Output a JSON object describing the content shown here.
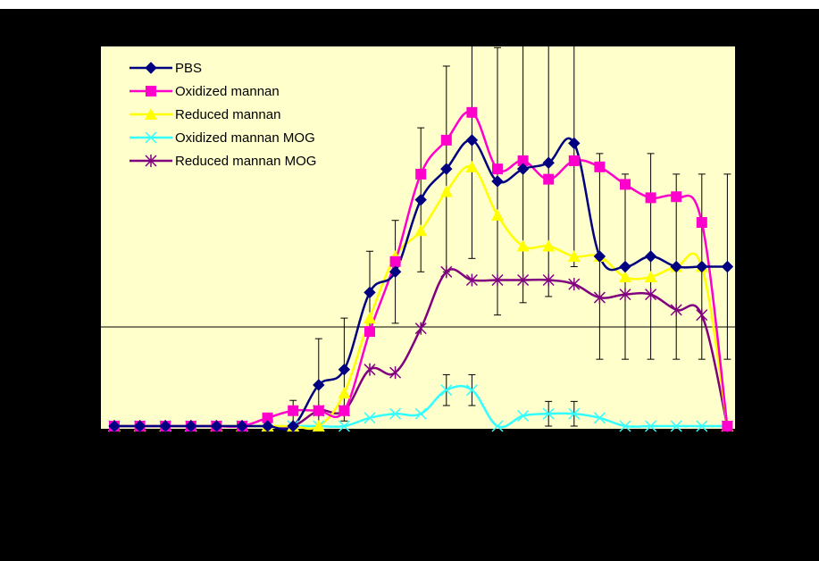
{
  "chart_data": {
    "type": "line",
    "title": "",
    "xlabel": "",
    "ylabel": "",
    "ylim": [
      0,
      3.5
    ],
    "x": [
      1,
      2,
      3,
      4,
      5,
      6,
      7,
      8,
      9,
      10,
      11,
      12,
      13,
      14,
      15,
      16,
      17,
      18,
      19,
      20,
      21,
      22,
      23,
      24,
      25
    ],
    "legend_position": "top-left",
    "grid": false,
    "colors": {
      "PBS": "#000080",
      "Oxidized mannan": "#FF00CC",
      "Reduced mannan": "#FFFF00",
      "Oxidized mannan MOG": "#33FFFF",
      "Reduced mannan MOG": "#800080",
      "plot_background": "#FFFFCC"
    },
    "series": [
      {
        "name": "PBS",
        "marker": "diamond",
        "values": [
          0,
          0,
          0,
          0,
          0,
          0,
          0,
          0,
          0.4,
          0.55,
          1.3,
          1.5,
          2.2,
          2.5,
          2.78,
          2.38,
          2.5,
          2.56,
          2.75,
          1.65,
          1.55,
          1.65,
          1.55,
          1.55,
          1.55
        ],
        "errors": [
          0,
          0,
          0,
          0,
          0,
          0,
          0,
          0.25,
          0.45,
          0.5,
          0.4,
          0.5,
          0.7,
          1.0,
          1.15,
          1.3,
          1.3,
          1.3,
          1.2,
          1.0,
          0.9,
          1.0,
          0.9,
          0.9,
          0.9
        ]
      },
      {
        "name": "Oxidized mannan",
        "marker": "square",
        "values": [
          0,
          0,
          0,
          0,
          0,
          0,
          0.08,
          0.15,
          0.15,
          0.15,
          0.92,
          1.6,
          2.45,
          2.78,
          3.05,
          2.5,
          2.58,
          2.4,
          2.58,
          2.52,
          2.35,
          2.22,
          2.23,
          1.98,
          0
        ]
      },
      {
        "name": "Reduced mannan",
        "marker": "triangle",
        "values": [
          0,
          0,
          0,
          0,
          0,
          0,
          0,
          0,
          0,
          0.32,
          1.05,
          1.65,
          1.9,
          2.28,
          2.52,
          2.05,
          1.75,
          1.75,
          1.65,
          1.65,
          1.45,
          1.45,
          1.55,
          1.55,
          0
        ]
      },
      {
        "name": "Oxidized mannan MOG",
        "marker": "x",
        "values": [
          0,
          0,
          0,
          0,
          0,
          0,
          0,
          0,
          0,
          0,
          0.08,
          0.12,
          0.12,
          0.35,
          0.35,
          0,
          0.1,
          0.12,
          0.12,
          0.08,
          0,
          0,
          0,
          0,
          0
        ],
        "errors": [
          0,
          0,
          0,
          0,
          0,
          0,
          0,
          0,
          0,
          0,
          0,
          0,
          0,
          0.15,
          0.15,
          0,
          0,
          0.12,
          0.12,
          0,
          0,
          0,
          0,
          0,
          0
        ]
      },
      {
        "name": "Reduced mannan MOG",
        "marker": "asterisk",
        "values": [
          0,
          0,
          0,
          0,
          0,
          0,
          0,
          0,
          0.15,
          0.15,
          0.55,
          0.52,
          0.95,
          1.5,
          1.42,
          1.42,
          1.42,
          1.42,
          1.38,
          1.25,
          1.28,
          1.28,
          1.13,
          1.08,
          0
        ]
      }
    ]
  }
}
